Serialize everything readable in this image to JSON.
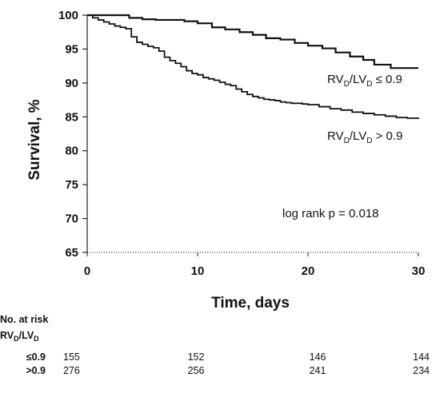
{
  "chart_data": {
    "type": "line",
    "step": true,
    "xlabel": "Time, days",
    "ylabel": "Survival, %",
    "xlim": [
      0,
      30
    ],
    "ylim": [
      65,
      100
    ],
    "x_ticks": [
      0,
      10,
      20,
      30
    ],
    "y_ticks": [
      65,
      70,
      75,
      80,
      85,
      90,
      95,
      100
    ],
    "grid": false,
    "series": [
      {
        "name": "RVD/LVD ≤ 0.9",
        "label_main": "RV",
        "label_sub1": "D",
        "label_mid": "/LV",
        "label_sub2": "D",
        "label_tail": " ≤ 0.9",
        "x": [
          0,
          1.2,
          2.5,
          3.8,
          5,
          6.2,
          7.5,
          8.8,
          10,
          11.3,
          12.5,
          13.8,
          15,
          16.2,
          17.5,
          18.8,
          20,
          21.3,
          22.5,
          23.8,
          25,
          26,
          27.5,
          30
        ],
        "y": [
          100,
          100,
          100,
          99.6,
          99.4,
          99.3,
          99.3,
          99.1,
          98.8,
          98.2,
          97.9,
          97.5,
          97.1,
          96.6,
          96.4,
          95.9,
          95.5,
          95.1,
          94.5,
          93.9,
          93.4,
          92.7,
          92.2,
          92.2
        ]
      },
      {
        "name": "RVD/LVD > 0.9",
        "label_main": "RV",
        "label_sub1": "D",
        "label_mid": "/LV",
        "label_sub2": "D",
        "label_tail": " > 0.9",
        "x": [
          0,
          0.5,
          1,
          1.5,
          2,
          2.5,
          3,
          3.5,
          4,
          4.5,
          5,
          5.5,
          6,
          6.5,
          7,
          7.5,
          8,
          8.5,
          9,
          9.5,
          10,
          10.5,
          11,
          11.5,
          12,
          12.5,
          13,
          13.5,
          14,
          14.5,
          15,
          15.5,
          16,
          16.5,
          17,
          17.5,
          18,
          18.5,
          19,
          19.5,
          20,
          21,
          22,
          23,
          24,
          25,
          26,
          27,
          28,
          29,
          30
        ],
        "y": [
          100,
          99.6,
          99.3,
          99.0,
          98.7,
          98.4,
          98.2,
          98.0,
          96.8,
          96.0,
          95.7,
          95.4,
          95.2,
          94.7,
          93.8,
          93.3,
          92.9,
          92.4,
          91.8,
          91.4,
          91.2,
          90.8,
          90.6,
          90.4,
          90.1,
          89.8,
          89.6,
          89.1,
          88.7,
          88.3,
          88.0,
          87.8,
          87.6,
          87.5,
          87.4,
          87.2,
          87.1,
          87.0,
          87.0,
          86.9,
          86.8,
          86.5,
          86.2,
          86.0,
          85.7,
          85.5,
          85.3,
          85.1,
          84.9,
          84.8,
          84.7
        ]
      }
    ],
    "annotation": "log rank p = 0.018"
  },
  "risk_table": {
    "title": "No. at risk",
    "group_main": "RV",
    "group_sub1": "D",
    "group_mid": "/LV",
    "group_sub2": "D",
    "rows": [
      {
        "label": "≤0.9",
        "values": [
          "155",
          "152",
          "146",
          "144"
        ]
      },
      {
        "label": ">0.9",
        "values": [
          "276",
          "256",
          "241",
          "234"
        ]
      }
    ]
  }
}
